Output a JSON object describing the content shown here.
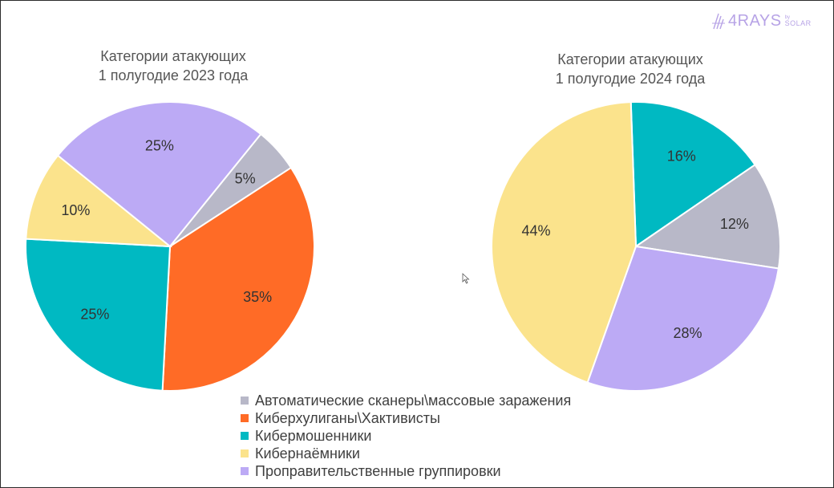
{
  "logo": {
    "text": "4RAYS",
    "by": "by",
    "brand": "SOLAR"
  },
  "chart_data": [
    {
      "type": "pie",
      "title_line1": "Категории атакующих",
      "title_line2": "1 полугодие 2023 года",
      "slices": [
        {
          "category": "Автоматические сканеры\\массовые заражения",
          "value": 5,
          "label": "5%",
          "color": "#b8b8c8"
        },
        {
          "category": "Киберхулиганы\\Хактивисты",
          "value": 35,
          "label": "35%",
          "color": "#ff6b26"
        },
        {
          "category": "Кибермошенники",
          "value": 25,
          "label": "25%",
          "color": "#00b9c2"
        },
        {
          "category": "Кибернаёмники",
          "value": 10,
          "label": "10%",
          "color": "#fbe38c"
        },
        {
          "category": "Проправительственные группировки",
          "value": 25,
          "label": "25%",
          "color": "#bcaaf5"
        }
      ]
    },
    {
      "type": "pie",
      "title_line1": "Категории атакующих",
      "title_line2": "1 полугодие 2024 года",
      "slices": [
        {
          "category": "Автоматические сканеры\\массовые заражения",
          "value": 12,
          "label": "12%",
          "color": "#b8b8c8"
        },
        {
          "category": "Киберхулиганы\\Хактивисты",
          "value": 0,
          "label": "",
          "color": "#ff6b26"
        },
        {
          "category": "Кибермошенники",
          "value": 16,
          "label": "16%",
          "color": "#00b9c2"
        },
        {
          "category": "Кибернаёмники",
          "value": 44,
          "label": "44%",
          "color": "#fbe38c"
        },
        {
          "category": "Проправительственные группировки",
          "value": 28,
          "label": "28%",
          "color": "#bcaaf5"
        }
      ]
    }
  ],
  "legend": [
    {
      "label": "Автоматические сканеры\\массовые заражения",
      "color": "#b8b8c8"
    },
    {
      "label": "Киберхулиганы\\Хактивисты",
      "color": "#ff6b26"
    },
    {
      "label": "Кибермошенники",
      "color": "#00b9c2"
    },
    {
      "label": "Кибернаёмники",
      "color": "#fbe38c"
    },
    {
      "label": "Проправительственные группировки",
      "color": "#bcaaf5"
    }
  ]
}
